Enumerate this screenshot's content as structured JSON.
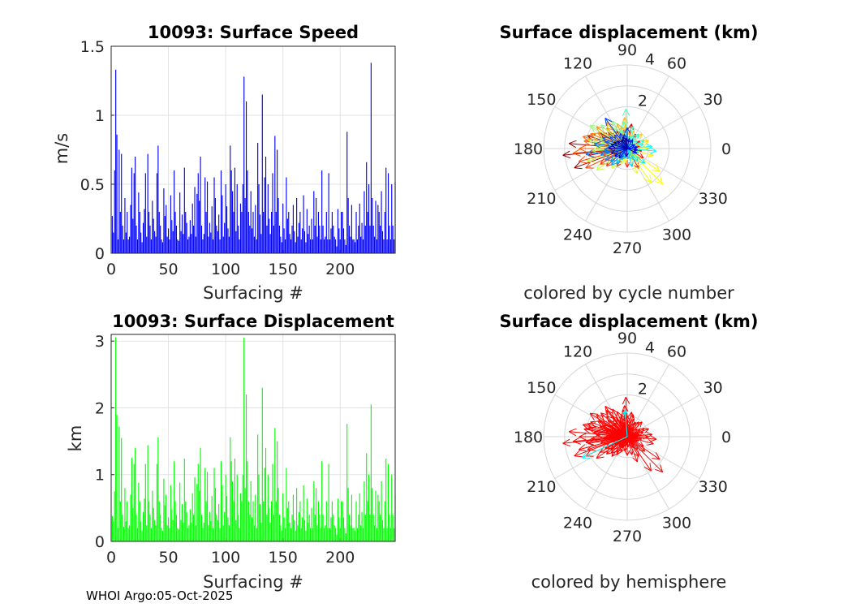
{
  "chart_data": [
    {
      "type": "bar",
      "title": "10093: Surface Speed",
      "xlabel": "Surfacing #",
      "ylabel": "m/s",
      "xlim": [
        0,
        248
      ],
      "ylim": [
        0,
        1.5
      ],
      "xticks": [
        "0",
        "50",
        "100",
        "150",
        "200"
      ],
      "yticks": [
        "0",
        "0.5",
        "1",
        "1.5"
      ],
      "grid": true,
      "color": "#0000ff",
      "values": [
        0.27,
        0.15,
        0.6,
        1.33,
        0.86,
        0.1,
        0.75,
        0.3,
        0.72,
        0.2,
        0.1,
        0.4,
        0.15,
        0.3,
        0.1,
        0.12,
        0.35,
        0.62,
        0.25,
        0.58,
        0.7,
        0.2,
        0.1,
        0.44,
        0.3,
        0.15,
        0.08,
        0.22,
        0.32,
        0.58,
        0.12,
        0.72,
        0.3,
        0.2,
        0.1,
        0.38,
        0.25,
        0.16,
        0.12,
        0.58,
        0.78,
        0.3,
        0.2,
        0.1,
        0.08,
        0.47,
        0.27,
        0.35,
        0.12,
        0.18,
        0.1,
        0.42,
        0.24,
        0.16,
        0.6,
        0.3,
        0.2,
        0.1,
        0.09,
        0.44,
        0.16,
        0.28,
        0.14,
        0.62,
        0.3,
        0.22,
        0.1,
        0.12,
        0.24,
        0.14,
        0.36,
        0.2,
        0.48,
        0.12,
        0.43,
        0.58,
        0.38,
        0.7,
        0.2,
        0.1,
        0.14,
        0.55,
        0.3,
        0.52,
        0.12,
        0.22,
        0.15,
        0.34,
        0.1,
        0.55,
        0.4,
        0.2,
        0.16,
        0.28,
        0.1,
        0.6,
        0.42,
        0.12,
        0.22,
        0.5,
        0.34,
        0.18,
        0.12,
        0.78,
        0.6,
        0.45,
        0.3,
        0.62,
        0.16,
        0.5,
        0.2,
        0.1,
        0.36,
        0.3,
        0.5,
        1.28,
        0.4,
        1.1,
        0.6,
        0.3,
        0.2,
        0.45,
        0.18,
        0.3,
        0.12,
        0.35,
        0.1,
        0.8,
        0.5,
        0.28,
        0.14,
        1.15,
        0.3,
        0.55,
        0.7,
        0.2,
        0.5,
        0.25,
        0.14,
        0.3,
        0.58,
        0.2,
        0.85,
        0.3,
        0.75,
        0.4,
        0.2,
        0.12,
        0.08,
        0.36,
        0.18,
        0.1,
        0.55,
        0.25,
        0.3,
        0.14,
        0.1,
        0.2,
        0.35,
        0.16,
        0.08,
        0.4,
        0.12,
        0.22,
        0.3,
        0.1,
        0.18,
        0.42,
        0.16,
        0.08,
        0.32,
        0.14,
        0.2,
        0.1,
        0.25,
        0.1,
        0.45,
        0.2,
        0.4,
        0.12,
        0.3,
        0.2,
        0.1,
        0.6,
        0.2,
        0.1,
        0.12,
        0.3,
        0.1,
        0.58,
        0.1,
        0.18,
        0.3,
        0.2,
        0.12,
        0.1,
        0.05,
        0.32,
        0.18,
        0.1,
        0.3,
        0.3,
        0.18,
        0.1,
        0.06,
        0.88,
        0.4,
        0.2,
        0.12,
        0.35,
        0.1,
        0.1,
        0.08,
        0.3,
        0.1,
        0.2,
        0.36,
        0.12,
        0.22,
        0.1,
        0.45,
        0.2,
        0.66,
        0.3,
        0.5,
        0.2,
        1.38,
        0.4,
        0.2,
        0.12,
        0.38,
        0.1,
        0.35,
        0.3,
        0.2,
        0.45,
        0.16,
        0.1,
        0.3,
        0.62,
        0.1,
        0.58,
        0.2,
        0.1,
        0.5,
        0.2,
        0.1,
        0.52
      ]
    },
    {
      "type": "bar",
      "title": "10093: Surface Displacement",
      "xlabel": "Surfacing #",
      "ylabel": "km",
      "xlim": [
        0,
        248
      ],
      "ylim": [
        0,
        3.1
      ],
      "xticks": [
        "0",
        "50",
        "100",
        "150",
        "200"
      ],
      "yticks": [
        "0",
        "1",
        "2",
        "3"
      ],
      "grid": true,
      "color": "#00ff00",
      "values": [
        0.38,
        0.3,
        0.75,
        3.06,
        1.9,
        0.2,
        1.72,
        0.6,
        1.55,
        0.4,
        0.22,
        0.8,
        0.3,
        0.6,
        0.2,
        0.24,
        0.7,
        1.25,
        0.5,
        1.16,
        1.4,
        0.4,
        0.2,
        0.88,
        0.6,
        0.3,
        0.16,
        0.44,
        0.64,
        1.16,
        0.24,
        1.44,
        0.6,
        0.4,
        0.2,
        0.76,
        0.5,
        0.32,
        0.24,
        1.16,
        1.56,
        0.6,
        0.4,
        0.2,
        0.16,
        0.94,
        0.54,
        0.7,
        0.24,
        0.36,
        0.2,
        0.84,
        0.48,
        0.32,
        1.2,
        0.6,
        0.4,
        0.2,
        0.18,
        0.88,
        0.32,
        0.56,
        0.28,
        1.24,
        0.6,
        0.44,
        0.2,
        0.24,
        0.48,
        0.28,
        0.72,
        0.4,
        0.96,
        0.24,
        0.86,
        1.16,
        0.76,
        1.4,
        0.4,
        0.2,
        0.28,
        1.1,
        0.6,
        1.04,
        0.24,
        0.44,
        0.3,
        0.68,
        0.2,
        1.1,
        0.8,
        0.4,
        0.32,
        0.56,
        0.2,
        1.2,
        0.84,
        0.24,
        0.44,
        1.0,
        0.68,
        0.36,
        0.24,
        1.56,
        1.2,
        0.9,
        0.6,
        1.24,
        0.32,
        1.0,
        0.4,
        0.2,
        0.72,
        0.6,
        1.0,
        3.05,
        0.8,
        2.2,
        1.2,
        0.6,
        0.4,
        0.9,
        0.36,
        0.6,
        0.24,
        0.7,
        0.2,
        1.6,
        1.0,
        0.56,
        0.28,
        2.3,
        0.6,
        1.1,
        1.4,
        0.4,
        1.0,
        0.5,
        0.28,
        0.6,
        1.16,
        0.4,
        1.7,
        0.6,
        1.5,
        0.8,
        0.4,
        0.24,
        0.16,
        0.72,
        0.36,
        0.2,
        1.1,
        0.5,
        0.6,
        0.28,
        0.2,
        0.4,
        0.7,
        0.32,
        0.16,
        0.8,
        0.24,
        0.44,
        0.6,
        0.2,
        0.36,
        0.84,
        0.32,
        0.16,
        0.64,
        0.28,
        0.4,
        0.2,
        0.5,
        0.2,
        0.9,
        0.4,
        0.8,
        0.24,
        0.6,
        0.4,
        0.2,
        1.2,
        0.4,
        0.2,
        0.24,
        0.6,
        0.2,
        1.16,
        0.2,
        0.36,
        0.6,
        0.4,
        0.24,
        0.2,
        0.1,
        0.64,
        0.36,
        0.2,
        0.6,
        0.6,
        0.36,
        0.2,
        0.12,
        1.76,
        0.8,
        0.4,
        0.24,
        0.7,
        0.2,
        0.2,
        0.16,
        0.6,
        0.2,
        0.4,
        0.72,
        0.24,
        0.44,
        0.2,
        0.9,
        0.4,
        1.32,
        0.6,
        1.0,
        0.4,
        2.05,
        0.8,
        0.4,
        0.24,
        0.76,
        0.2,
        0.7,
        0.6,
        0.4,
        0.9,
        0.32,
        0.2,
        0.6,
        1.24,
        0.2,
        1.16,
        0.4,
        0.2,
        1.0,
        0.4,
        0.2,
        0.7
      ]
    },
    {
      "type": "polar-compass",
      "title": "Surface displacement (km)",
      "caption": "colored by cycle number",
      "rlim": [
        0,
        4
      ],
      "rticks": [
        "2",
        "4"
      ],
      "angle_labels": [
        "0",
        "30",
        "60",
        "90",
        "120",
        "150",
        "180",
        "210",
        "240",
        "270",
        "300",
        "330"
      ],
      "color_scheme": "jet",
      "arrows": [
        {
          "deg": 186,
          "r": 3.1
        },
        {
          "deg": 162,
          "r": 2.0
        },
        {
          "deg": 200,
          "r": 2.7
        },
        {
          "deg": 150,
          "r": 1.5
        },
        {
          "deg": 175,
          "r": 2.8
        },
        {
          "deg": 190,
          "r": 1.9
        },
        {
          "deg": 140,
          "r": 1.2
        },
        {
          "deg": 120,
          "r": 1.0
        },
        {
          "deg": 100,
          "r": 0.9
        },
        {
          "deg": 80,
          "r": 1.2
        },
        {
          "deg": 60,
          "r": 0.8
        },
        {
          "deg": 30,
          "r": 0.7
        },
        {
          "deg": 10,
          "r": 0.6
        },
        {
          "deg": 350,
          "r": 0.7
        },
        {
          "deg": 330,
          "r": 0.9
        },
        {
          "deg": 300,
          "r": 1.1
        },
        {
          "deg": 270,
          "r": 0.9
        },
        {
          "deg": 240,
          "r": 1.0
        },
        {
          "deg": 220,
          "r": 1.3
        },
        {
          "deg": 210,
          "r": 1.5
        },
        {
          "deg": 205,
          "r": 2.2
        },
        {
          "deg": 195,
          "r": 2.4
        },
        {
          "deg": 185,
          "r": 2.6
        },
        {
          "deg": 180,
          "r": 2.3
        },
        {
          "deg": 170,
          "r": 2.1
        },
        {
          "deg": 165,
          "r": 2.2
        },
        {
          "deg": 158,
          "r": 1.9
        },
        {
          "deg": 152,
          "r": 1.6
        },
        {
          "deg": 145,
          "r": 1.8
        },
        {
          "deg": 135,
          "r": 1.4
        },
        {
          "deg": 128,
          "r": 1.6
        },
        {
          "deg": 112,
          "r": 1.3
        },
        {
          "deg": 105,
          "r": 1.1
        },
        {
          "deg": 95,
          "r": 1.5
        },
        {
          "deg": 88,
          "r": 0.8
        },
        {
          "deg": 70,
          "r": 0.9
        },
        {
          "deg": 45,
          "r": 1.0
        },
        {
          "deg": 20,
          "r": 1.1
        },
        {
          "deg": 0,
          "r": 1.0
        },
        {
          "deg": 345,
          "r": 1.3
        },
        {
          "deg": 325,
          "r": 1.9
        },
        {
          "deg": 315,
          "r": 2.4
        },
        {
          "deg": 305,
          "r": 2.0
        },
        {
          "deg": 292,
          "r": 1.3
        },
        {
          "deg": 260,
          "r": 0.7
        },
        {
          "deg": 248,
          "r": 0.8
        },
        {
          "deg": 232,
          "r": 1.2
        },
        {
          "deg": 215,
          "r": 1.8
        },
        {
          "deg": 198,
          "r": 2.0
        },
        {
          "deg": 183,
          "r": 1.7
        },
        {
          "deg": 176,
          "r": 1.5
        },
        {
          "deg": 168,
          "r": 1.9
        },
        {
          "deg": 160,
          "r": 1.4
        },
        {
          "deg": 148,
          "r": 2.1
        },
        {
          "deg": 138,
          "r": 1.7
        },
        {
          "deg": 125,
          "r": 1.2
        },
        {
          "deg": 118,
          "r": 1.5
        },
        {
          "deg": 108,
          "r": 1.0
        },
        {
          "deg": 98,
          "r": 1.3
        },
        {
          "deg": 92,
          "r": 1.9
        },
        {
          "deg": 85,
          "r": 0.6
        },
        {
          "deg": 75,
          "r": 1.1
        },
        {
          "deg": 65,
          "r": 0.7
        },
        {
          "deg": 52,
          "r": 0.9
        },
        {
          "deg": 38,
          "r": 0.6
        },
        {
          "deg": 25,
          "r": 0.9
        },
        {
          "deg": 15,
          "r": 0.8
        },
        {
          "deg": 5,
          "r": 1.2
        },
        {
          "deg": 355,
          "r": 1.4
        },
        {
          "deg": 340,
          "r": 0.6
        },
        {
          "deg": 320,
          "r": 1.1
        },
        {
          "deg": 310,
          "r": 0.8
        },
        {
          "deg": 298,
          "r": 0.6
        },
        {
          "deg": 285,
          "r": 0.9
        },
        {
          "deg": 275,
          "r": 0.5
        },
        {
          "deg": 255,
          "r": 0.5
        },
        {
          "deg": 244,
          "r": 0.6
        },
        {
          "deg": 236,
          "r": 0.9
        },
        {
          "deg": 226,
          "r": 1.1
        },
        {
          "deg": 218,
          "r": 1.0
        },
        {
          "deg": 208,
          "r": 1.2
        },
        {
          "deg": 193,
          "r": 1.3
        },
        {
          "deg": 188,
          "r": 2.0
        },
        {
          "deg": 182,
          "r": 1.1
        },
        {
          "deg": 172,
          "r": 1.6
        },
        {
          "deg": 163,
          "r": 1.1
        },
        {
          "deg": 156,
          "r": 1.3
        },
        {
          "deg": 146,
          "r": 1.0
        },
        {
          "deg": 133,
          "r": 0.9
        },
        {
          "deg": 126,
          "r": 1.8
        },
        {
          "deg": 115,
          "r": 0.8
        },
        {
          "deg": 102,
          "r": 0.7
        },
        {
          "deg": 90,
          "r": 1.0
        },
        {
          "deg": 78,
          "r": 0.5
        },
        {
          "deg": 58,
          "r": 0.5
        },
        {
          "deg": 28,
          "r": 0.4
        },
        {
          "deg": 8,
          "r": 0.5
        },
        {
          "deg": 352,
          "r": 0.5
        },
        {
          "deg": 335,
          "r": 0.5
        },
        {
          "deg": 262,
          "r": 0.4
        },
        {
          "deg": 230,
          "r": 0.6
        },
        {
          "deg": 212,
          "r": 0.7
        },
        {
          "deg": 196,
          "r": 0.8
        },
        {
          "deg": 178,
          "r": 0.9
        },
        {
          "deg": 166,
          "r": 0.8
        },
        {
          "deg": 154,
          "r": 0.7
        },
        {
          "deg": 142,
          "r": 0.6
        },
        {
          "deg": 122,
          "r": 0.5
        },
        {
          "deg": 110,
          "r": 0.6
        },
        {
          "deg": 95,
          "r": 0.5
        }
      ]
    },
    {
      "type": "polar-compass",
      "title": "Surface displacement (km)",
      "caption": "colored by hemisphere",
      "rlim": [
        0,
        4
      ],
      "rticks": [
        "2",
        "4"
      ],
      "angle_labels": [
        "0",
        "30",
        "60",
        "90",
        "120",
        "150",
        "180",
        "210",
        "240",
        "270",
        "300",
        "330"
      ],
      "colors": {
        "primary": "#ff0000",
        "secondary": "#00ffff"
      },
      "highlight_arrows": [
        {
          "deg": 205,
          "r": 2.4
        },
        {
          "deg": 95,
          "r": 1.3
        }
      ]
    }
  ],
  "footer": "WHOI Argo:05-Oct-2025"
}
